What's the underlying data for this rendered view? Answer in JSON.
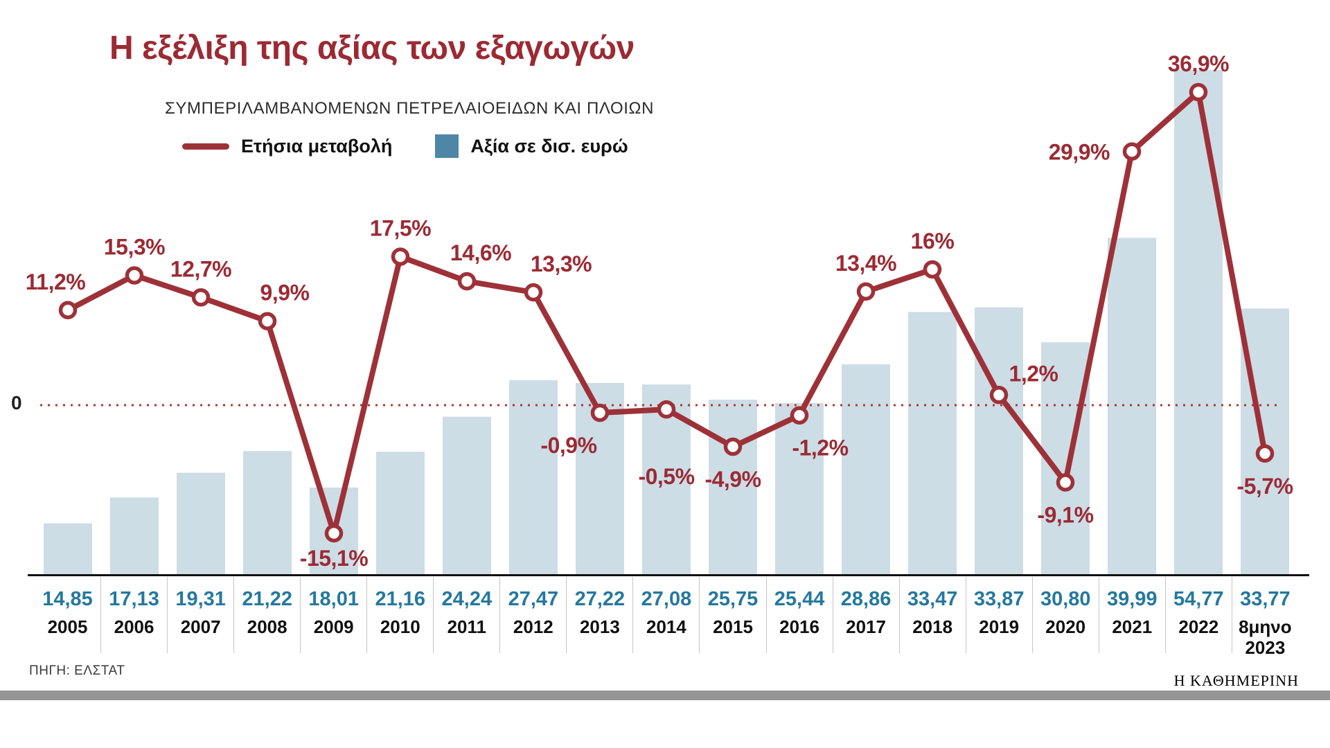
{
  "header": {
    "title": "Η εξέλιξη της αξίας των εξαγωγών",
    "subtitle": "ΣΥΜΠΕΡΙΛΑΜΒΑΝΟΜΕΝΩΝ ΠΕΤΡΕΛΑΙΟΕΙΔΩΝ ΚΑΙ ΠΛΟΙΩΝ"
  },
  "legend": {
    "line_label": "Ετήσια μεταβολή",
    "bar_label": "Αξία σε δισ. ευρώ"
  },
  "axis": {
    "zero_label": "0"
  },
  "footer": {
    "source": "ΠΗΓΗ: ΕΛΣΤΑΤ",
    "brand": "Η ΚΑΘΗΜΕΡΙΝΗ"
  },
  "colors": {
    "accent_red": "#9c2a33",
    "line_red": "#9e3138",
    "bar_fill": "#ccdde6",
    "legend_blue": "#4e87a6",
    "value_teal": "#24789f",
    "zero_line_red": "#b5342e"
  },
  "chart_data": {
    "type": "combo (bar + line)",
    "title": "Η εξέλιξη της αξίας των εξαγωγών",
    "subtitle": "ΣΥΜΠΕΡΙΛΑΜΒΑΝΟΜΕΝΩΝ ΠΕΤΡΕΛΑΙΟΕΙΔΩΝ ΚΑΙ ΠΛΟΙΩΝ",
    "categories": [
      "2005",
      "2006",
      "2007",
      "2008",
      "2009",
      "2010",
      "2011",
      "2012",
      "2013",
      "2014",
      "2015",
      "2016",
      "2017",
      "2018",
      "2019",
      "2020",
      "2021",
      "2022",
      "8μηνο 2023"
    ],
    "series": [
      {
        "name": "Ετήσια μεταβολή",
        "type": "line",
        "unit": "%",
        "values": [
          11.2,
          15.3,
          12.7,
          9.9,
          -15.1,
          17.5,
          14.6,
          13.3,
          -0.9,
          -0.5,
          -4.9,
          -1.2,
          13.4,
          16,
          1.2,
          -9.1,
          29.9,
          36.9,
          -5.7
        ],
        "labels": [
          "11,2%",
          "15,3%",
          "12,7%",
          "9,9%",
          "-15,1%",
          "17,5%",
          "14,6%",
          "13,3%",
          "-0,9%",
          "-0,5%",
          "-4,9%",
          "-1,2%",
          "13,4%",
          "16%",
          "1,2%",
          "-9,1%",
          "29,9%",
          "36,9%",
          "-5,7%"
        ]
      },
      {
        "name": "Αξία σε δισ. ευρώ",
        "type": "bar",
        "unit": "δισ. ευρώ",
        "values": [
          14.85,
          17.13,
          19.31,
          21.22,
          18.01,
          21.16,
          24.24,
          27.47,
          27.22,
          27.08,
          25.75,
          25.44,
          28.86,
          33.47,
          33.87,
          30.8,
          39.99,
          54.77,
          33.77
        ],
        "labels": [
          "14,85",
          "17,13",
          "19,31",
          "21,22",
          "18,01",
          "21,16",
          "24,24",
          "27,47",
          "27,22",
          "27,08",
          "25,75",
          "25,44",
          "28,86",
          "33,47",
          "33,87",
          "30,80",
          "39,99",
          "54,77",
          "33,77"
        ]
      }
    ],
    "legend_position": "top",
    "zero_reference_line": true,
    "source": "ΠΗΓΗ: ΕΛΣΤΑΤ"
  }
}
